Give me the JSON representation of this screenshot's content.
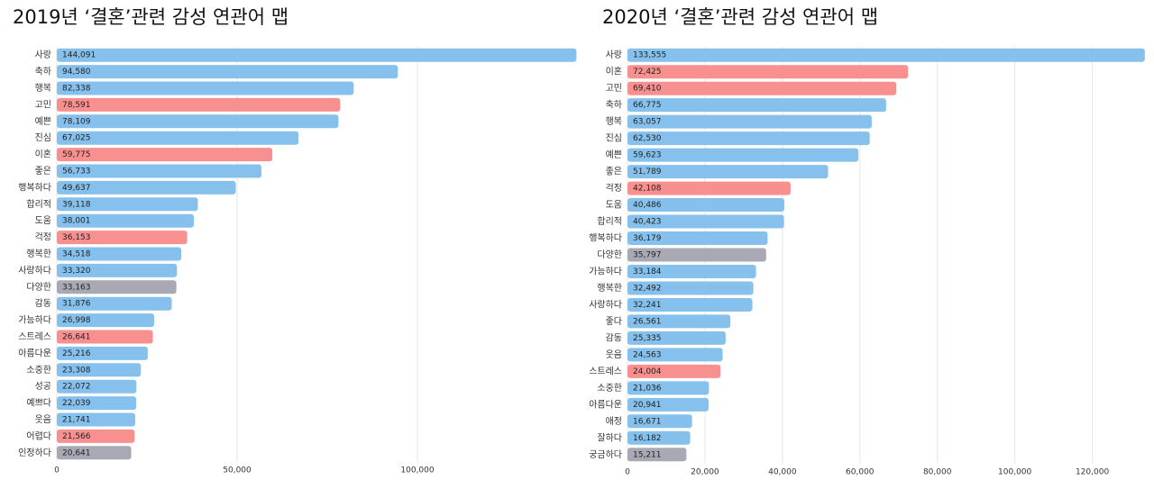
{
  "chart_data": [
    {
      "type": "bar",
      "orientation": "horizontal",
      "title": "2019년 ‘결혼’관련 감성 연관어 맵",
      "categories": [
        "사랑",
        "축하",
        "행복",
        "고민",
        "예쁜",
        "진심",
        "이혼",
        "좋은",
        "행복하다",
        "합리적",
        "도움",
        "걱정",
        "행복한",
        "사랑하다",
        "다양한",
        "감동",
        "가능하다",
        "스트레스",
        "아름다운",
        "소중한",
        "성공",
        "예쁘다",
        "웃음",
        "어렵다",
        "인정하다"
      ],
      "values": [
        144091,
        94580,
        82338,
        78591,
        78109,
        67025,
        59775,
        56733,
        49637,
        39118,
        38001,
        36153,
        34518,
        33320,
        33163,
        31876,
        26998,
        26641,
        25216,
        23308,
        22072,
        22039,
        21741,
        21566,
        20641
      ],
      "value_labels": [
        "144,091",
        "94,580",
        "82,338",
        "78,591",
        "78,109",
        "67,025",
        "59,775",
        "56,733",
        "49,637",
        "39,118",
        "38,001",
        "36,153",
        "34,518",
        "33,320",
        "33,163",
        "31,876",
        "26,998",
        "26,641",
        "25,216",
        "23,308",
        "22,072",
        "22,039",
        "21,741",
        "21,566",
        "20,641"
      ],
      "colors": [
        "#85c1ec",
        "#85c1ec",
        "#85c1ec",
        "#f99090",
        "#85c1ec",
        "#85c1ec",
        "#f99090",
        "#85c1ec",
        "#85c1ec",
        "#85c1ec",
        "#85c1ec",
        "#f99090",
        "#85c1ec",
        "#85c1ec",
        "#a9a9b5",
        "#85c1ec",
        "#85c1ec",
        "#f99090",
        "#85c1ec",
        "#85c1ec",
        "#85c1ec",
        "#85c1ec",
        "#85c1ec",
        "#f99090",
        "#a9a9b5"
      ],
      "xlim": [
        0,
        144250
      ],
      "xticks": [
        0,
        {
          "value": 50000,
          "label": "50,000"
        },
        {
          "value": 100000,
          "label": "100,000"
        }
      ],
      "grid": true
    },
    {
      "type": "bar",
      "orientation": "horizontal",
      "title": "2020년 ‘결혼’관련 감성 연관어 맵",
      "categories": [
        "사랑",
        "이혼",
        "고민",
        "축하",
        "행복",
        "진심",
        "예쁜",
        "좋은",
        "걱정",
        "도움",
        "합리적",
        "행복하다",
        "다양한",
        "가능하다",
        "행복한",
        "사랑하다",
        "좋다",
        "감동",
        "웃음",
        "스트레스",
        "소중한",
        "아름다운",
        "애정",
        "잘하다",
        "궁금하다"
      ],
      "values": [
        133555,
        72425,
        69410,
        66775,
        63057,
        62530,
        59623,
        51789,
        42108,
        40486,
        40423,
        36179,
        35797,
        33184,
        32492,
        32241,
        26561,
        25335,
        24563,
        24004,
        21036,
        20941,
        16671,
        16182,
        15211
      ],
      "value_labels": [
        "133,555",
        "72,425",
        "69,410",
        "66,775",
        "63,057",
        "62,530",
        "59,623",
        "51,789",
        "42,108",
        "40,486",
        "40,423",
        "36,179",
        "35,797",
        "33,184",
        "32,492",
        "32,241",
        "26,561",
        "25,335",
        "24,563",
        "24,004",
        "21,036",
        "20,941",
        "16,671",
        "16,182",
        "15,211"
      ],
      "colors": [
        "#85c1ec",
        "#f99090",
        "#f99090",
        "#85c1ec",
        "#85c1ec",
        "#85c1ec",
        "#85c1ec",
        "#85c1ec",
        "#f99090",
        "#85c1ec",
        "#85c1ec",
        "#85c1ec",
        "#a9a9b5",
        "#85c1ec",
        "#85c1ec",
        "#85c1ec",
        "#85c1ec",
        "#85c1ec",
        "#85c1ec",
        "#f99090",
        "#85c1ec",
        "#85c1ec",
        "#85c1ec",
        "#85c1ec",
        "#a9a9b5"
      ],
      "xlim": [
        0,
        133600
      ],
      "xticks": [
        0,
        {
          "value": 20000,
          "label": "20,000"
        },
        {
          "value": 40000,
          "label": "40,000"
        },
        {
          "value": 60000,
          "label": "60,000"
        },
        {
          "value": 80000,
          "label": "80,000"
        },
        {
          "value": 100000,
          "label": "100,000"
        },
        {
          "value": 120000,
          "label": "120,000"
        }
      ],
      "grid": true
    }
  ]
}
